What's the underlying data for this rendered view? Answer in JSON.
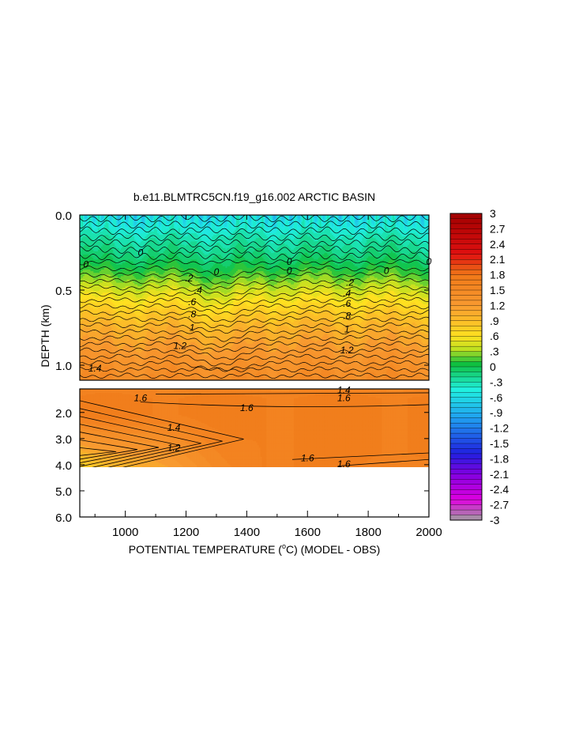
{
  "chart_data": {
    "type": "heatmap",
    "title": "b.e11.BLMTRC5CN.f19_g16.002 ARCTIC BASIN",
    "xlabel": "POTENTIAL TEMPERATURE (",
    "xlabel_degree": "o",
    "xlabel_tail": "C) (MODEL - OBS)",
    "ylabel": "DEPTH (km)",
    "x_ticks": [
      "1000",
      "1200",
      "1400",
      "1600",
      "1800",
      "2000"
    ],
    "x_tick_values": [
      1000,
      1200,
      1400,
      1600,
      1800,
      2000
    ],
    "xlim": [
      850,
      2000
    ],
    "upper_panel": {
      "ylim": [
        0.0,
        1.1
      ],
      "y_ticks": [
        "0.0",
        "0.5",
        "1.0"
      ],
      "y_tick_values": [
        0.0,
        0.5,
        1.0
      ],
      "depths": [
        0.0,
        0.08,
        0.15,
        0.25,
        0.35,
        0.45,
        0.55,
        0.65,
        0.75,
        0.85,
        0.95,
        1.05,
        1.1
      ],
      "profile": [
        -0.6,
        -0.45,
        -0.3,
        -0.15,
        0.05,
        0.3,
        0.55,
        0.8,
        1.0,
        1.15,
        1.3,
        1.4,
        1.45
      ],
      "contour_labels": [
        {
          "text": "0",
          "x": 870,
          "d": 0.33
        },
        {
          "text": "0",
          "x": 1050,
          "d": 0.25
        },
        {
          "text": "0",
          "x": 1300,
          "d": 0.38
        },
        {
          "text": "0",
          "x": 1540,
          "d": 0.31
        },
        {
          "text": "0",
          "x": 1540,
          "d": 0.37
        },
        {
          "text": "0",
          "x": 1860,
          "d": 0.37
        },
        {
          "text": "0",
          "x": 2000,
          "d": 0.31
        },
        {
          "text": ".2",
          "x": 1210,
          "d": 0.42
        },
        {
          "text": ".4",
          "x": 1240,
          "d": 0.5
        },
        {
          "text": ".6",
          "x": 1220,
          "d": 0.58
        },
        {
          "text": ".8",
          "x": 1220,
          "d": 0.66
        },
        {
          "text": "1",
          "x": 1220,
          "d": 0.75
        },
        {
          "text": "1.2",
          "x": 1180,
          "d": 0.87
        },
        {
          "text": "1.4",
          "x": 900,
          "d": 1.02
        },
        {
          "text": ".2",
          "x": 1740,
          "d": 0.45
        },
        {
          "text": ".4",
          "x": 1730,
          "d": 0.52
        },
        {
          "text": ".6",
          "x": 1730,
          "d": 0.59
        },
        {
          "text": ".8",
          "x": 1730,
          "d": 0.67
        },
        {
          "text": "1",
          "x": 1730,
          "d": 0.76
        },
        {
          "text": "1.2",
          "x": 1730,
          "d": 0.9
        }
      ]
    },
    "lower_panel": {
      "ylim": [
        1.1,
        6.0
      ],
      "data_extent": [
        1.1,
        4.15
      ],
      "y_ticks": [
        "2.0",
        "3.0",
        "4.0",
        "5.0",
        "6.0"
      ],
      "y_tick_values": [
        2.0,
        3.0,
        4.0,
        5.0,
        6.0
      ],
      "contour_labels": [
        {
          "text": "1.6",
          "x": 1050,
          "d": 1.45
        },
        {
          "text": "1.6",
          "x": 1400,
          "d": 1.82
        },
        {
          "text": "1.4",
          "x": 1160,
          "d": 2.58
        },
        {
          "text": "1.2",
          "x": 1160,
          "d": 3.35
        },
        {
          "text": "1.6",
          "x": 1600,
          "d": 3.75
        },
        {
          "text": "1.6",
          "x": 1720,
          "d": 3.98
        },
        {
          "text": "1.4",
          "x": 1720,
          "d": 1.15
        },
        {
          "text": "1.6",
          "x": 1720,
          "d": 1.45
        }
      ]
    },
    "colorbar": {
      "labels": [
        "3",
        "2.7",
        "2.4",
        "2.1",
        "1.8",
        "1.5",
        "1.2",
        ".9",
        ".6",
        ".3",
        "0",
        "-.3",
        "-.6",
        "-.9",
        "-1.2",
        "-1.5",
        "-1.8",
        "-2.1",
        "-2.4",
        "-2.7",
        "-3"
      ],
      "values": [
        3,
        2.7,
        2.4,
        2.1,
        1.8,
        1.5,
        1.2,
        0.9,
        0.6,
        0.3,
        0,
        -0.3,
        -0.6,
        -0.9,
        -1.2,
        -1.5,
        -1.8,
        -2.1,
        -2.4,
        -2.7,
        -3
      ],
      "range": [
        -3,
        3
      ],
      "step": 0.1
    },
    "colors": {
      "negative_deep": "#a0a0a0",
      "magenta": "#e000e0",
      "purple": "#8000e0",
      "blue": "#2020e0",
      "sky": "#20a0f0",
      "cyan": "#20f0e0",
      "green": "#10c040",
      "yellow_green": "#c0e020",
      "yellow": "#ffe020",
      "orange": "#f89a30",
      "dark_orange": "#f07818",
      "red": "#e01010",
      "dark_red": "#a00000"
    }
  }
}
